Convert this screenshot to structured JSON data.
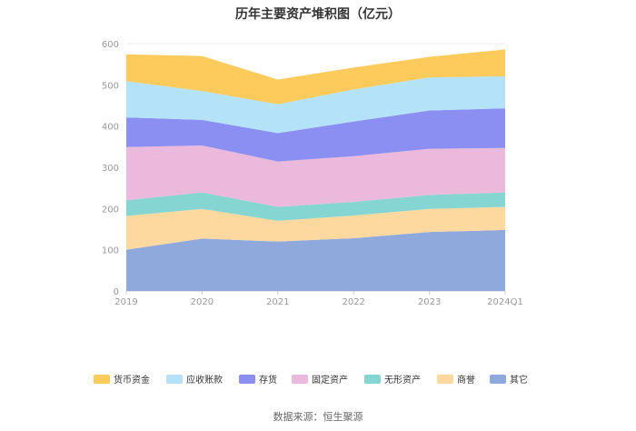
{
  "chart_data": {
    "type": "area",
    "stacked": true,
    "title": "历年主要资产堆积图（亿元）",
    "categories": [
      "2019",
      "2020",
      "2021",
      "2022",
      "2023",
      "2024Q1"
    ],
    "ylim": [
      0,
      600
    ],
    "yticks": [
      0,
      100,
      200,
      300,
      400,
      500,
      600
    ],
    "grid": true,
    "legend_position": "bottom",
    "series": [
      {
        "name": "其它",
        "color": "#8fa9dc",
        "values": [
          100,
          127,
          120,
          128,
          143,
          148
        ]
      },
      {
        "name": "商誉",
        "color": "#fdd9a0",
        "values": [
          82,
          72,
          50,
          55,
          56,
          56
        ]
      },
      {
        "name": "无形资产",
        "color": "#85d6d2",
        "values": [
          38,
          40,
          34,
          33,
          34,
          35
        ]
      },
      {
        "name": "固定资产",
        "color": "#eab9dc",
        "values": [
          129,
          114,
          110,
          111,
          112,
          108
        ]
      },
      {
        "name": "存货",
        "color": "#8c8ff2",
        "values": [
          72,
          62,
          69,
          84,
          93,
          96
        ]
      },
      {
        "name": "应收账款",
        "color": "#b4e2f8",
        "values": [
          88,
          70,
          70,
          78,
          80,
          78
        ]
      },
      {
        "name": "货币资金",
        "color": "#fdcb5c",
        "values": [
          65,
          85,
          60,
          53,
          50,
          65
        ]
      }
    ],
    "legend_order": [
      "货币资金",
      "应收账款",
      "存货",
      "固定资产",
      "无形资产",
      "商誉",
      "其它"
    ]
  },
  "footer": {
    "source": "数据来源：恒生聚源"
  }
}
